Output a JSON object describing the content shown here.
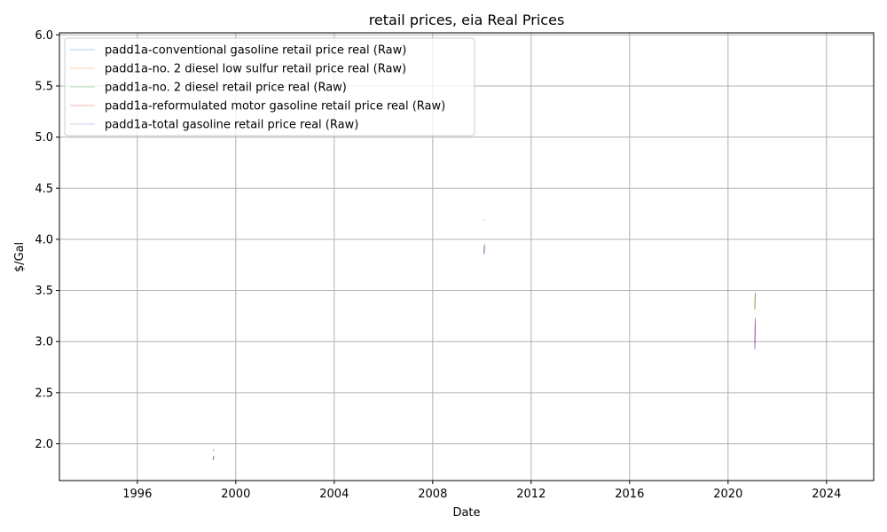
{
  "chart_data": {
    "type": "line",
    "title": "retail prices, eia Real Prices",
    "xlabel": "Date",
    "ylabel": "$/Gal",
    "xlim": [
      "1992-11-01",
      "2025-12-01"
    ],
    "ylim": [
      1.64,
      6.02
    ],
    "x_ticks": [
      "1996",
      "2000",
      "2004",
      "2008",
      "2012",
      "2016",
      "2020",
      "2024"
    ],
    "y_ticks": [
      "2.0",
      "2.5",
      "3.0",
      "3.5",
      "4.0",
      "4.5",
      "5.0",
      "5.5",
      "6.0"
    ],
    "grid": true,
    "legend_position": "upper-left",
    "series": [
      {
        "name": "padd1a-conventional gasoline retail price real (Raw)",
        "color": "#1f77b4",
        "points": [
          {
            "x": "1999-02-01",
            "y": 1.84
          },
          {
            "x": "1999-02-08",
            "y": 1.87
          },
          {
            "x": "2010-02-01",
            "y": 3.86
          },
          {
            "x": "2010-02-08",
            "y": 3.93
          },
          {
            "x": "2021-02-01",
            "y": 2.93
          },
          {
            "x": "2021-02-08",
            "y": 3.18
          }
        ]
      },
      {
        "name": "padd1a-no. 2 diesel low sulfur retail price real (Raw)",
        "color": "#ff7f0e",
        "points": [
          {
            "x": "2010-02-01",
            "y": 4.19
          },
          {
            "x": "2010-02-08",
            "y": 4.19
          },
          {
            "x": "2021-02-01",
            "y": 3.32
          },
          {
            "x": "2021-02-08",
            "y": 3.47
          }
        ]
      },
      {
        "name": "padd1a-no. 2 diesel retail price real (Raw)",
        "color": "#2ca02c",
        "points": [
          {
            "x": "1999-02-01",
            "y": 1.93
          },
          {
            "x": "1999-02-08",
            "y": 1.95
          },
          {
            "x": "2010-02-01",
            "y": 4.18
          },
          {
            "x": "2010-02-08",
            "y": 4.19
          },
          {
            "x": "2021-02-01",
            "y": 3.31
          },
          {
            "x": "2021-02-08",
            "y": 3.48
          }
        ]
      },
      {
        "name": "padd1a-reformulated motor gasoline retail price real (Raw)",
        "color": "#d62728",
        "points": [
          {
            "x": "1999-02-01",
            "y": 1.85
          },
          {
            "x": "1999-02-08",
            "y": 1.88
          },
          {
            "x": "2010-02-01",
            "y": 3.88
          },
          {
            "x": "2010-02-08",
            "y": 3.95
          },
          {
            "x": "2021-02-01",
            "y": 2.96
          },
          {
            "x": "2021-02-08",
            "y": 3.23
          }
        ]
      },
      {
        "name": "padd1a-total gasoline retail price real (Raw)",
        "color": "#9467bd",
        "points": [
          {
            "x": "1999-02-01",
            "y": 1.84
          },
          {
            "x": "1999-02-08",
            "y": 1.88
          },
          {
            "x": "2010-02-01",
            "y": 3.85
          },
          {
            "x": "2010-02-08",
            "y": 3.94
          },
          {
            "x": "2021-02-01",
            "y": 2.92
          },
          {
            "x": "2021-02-08",
            "y": 3.21
          }
        ]
      }
    ]
  }
}
